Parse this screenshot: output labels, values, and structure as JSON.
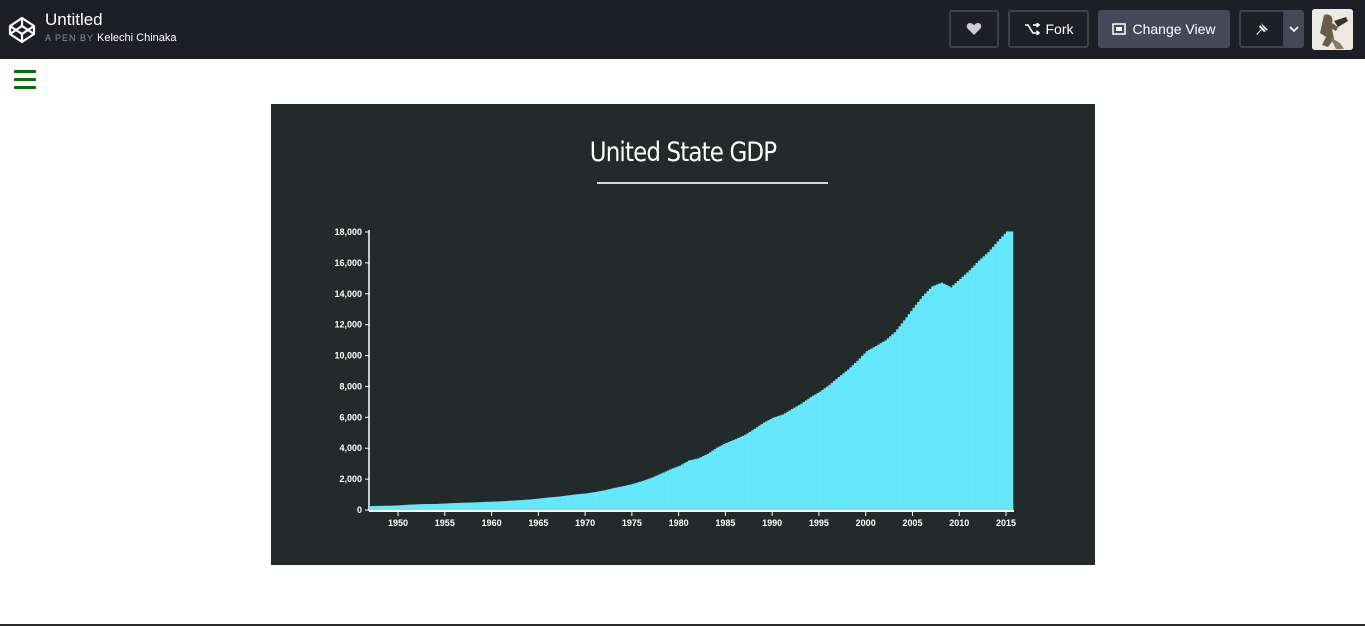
{
  "header": {
    "title": "Untitled",
    "byline_prefix": "A PEN BY",
    "author": "Kelechi Chinaka",
    "buttons": {
      "heart_icon": "heart-icon",
      "fork_label": "Fork",
      "change_view_label": "Change View",
      "pin_icon": "pin-icon"
    }
  },
  "colors": {
    "topbar": "#1e1f26",
    "chart_bg": "#232a2a",
    "bar": "#66e8fc",
    "hamburger": "#0a6b0a"
  },
  "chart_data": {
    "type": "bar",
    "title": "United State GDP",
    "xlabel": "",
    "ylabel": "",
    "ylim": [
      0,
      18000
    ],
    "yticks": [
      "0",
      "2,000",
      "4,000",
      "6,000",
      "8,000",
      "10,000",
      "12,000",
      "14,000",
      "16,000",
      "18,000"
    ],
    "xticks": [
      "1950",
      "1955",
      "1960",
      "1965",
      "1970",
      "1975",
      "1980",
      "1985",
      "1990",
      "1995",
      "2000",
      "2005",
      "2010",
      "2015"
    ],
    "grid": false,
    "series": [
      {
        "x": [
          1947,
          1948,
          1949,
          1950,
          1951,
          1952,
          1953,
          1954,
          1955,
          1956,
          1957,
          1958,
          1959,
          1960,
          1961,
          1962,
          1963,
          1964,
          1965,
          1966,
          1967,
          1968,
          1969,
          1970,
          1971,
          1972,
          1973,
          1974,
          1975,
          1976,
          1977,
          1978,
          1979,
          1980,
          1981,
          1982,
          1983,
          1984,
          1985,
          1986,
          1987,
          1988,
          1989,
          1990,
          1991,
          1992,
          1993,
          1994,
          1995,
          1996,
          1997,
          1998,
          1999,
          2000,
          2001,
          2002,
          2003,
          2004,
          2005,
          2006,
          2007,
          2008,
          2009,
          2010,
          2011,
          2012,
          2013,
          2014,
          2015
        ],
        "values": [
          250,
          270,
          275,
          300,
          345,
          370,
          390,
          392,
          425,
          450,
          475,
          485,
          520,
          543,
          563,
          605,
          638,
          685,
          743,
          815,
          862,
          943,
          1019,
          1075,
          1167,
          1282,
          1428,
          1548,
          1688,
          1877,
          2086,
          2356,
          2632,
          2863,
          3211,
          3345,
          3638,
          4041,
          4347,
          4590,
          4870,
          5253,
          5658,
          5980,
          6174,
          6539,
          6879,
          7309,
          7664,
          8100,
          8609,
          9089,
          9661,
          10285,
          10622,
          10978,
          11511,
          12275,
          13094,
          13856,
          14478,
          14719,
          14419,
          14964,
          15518,
          16155,
          16692,
          17393,
          18037
        ]
      }
    ]
  }
}
